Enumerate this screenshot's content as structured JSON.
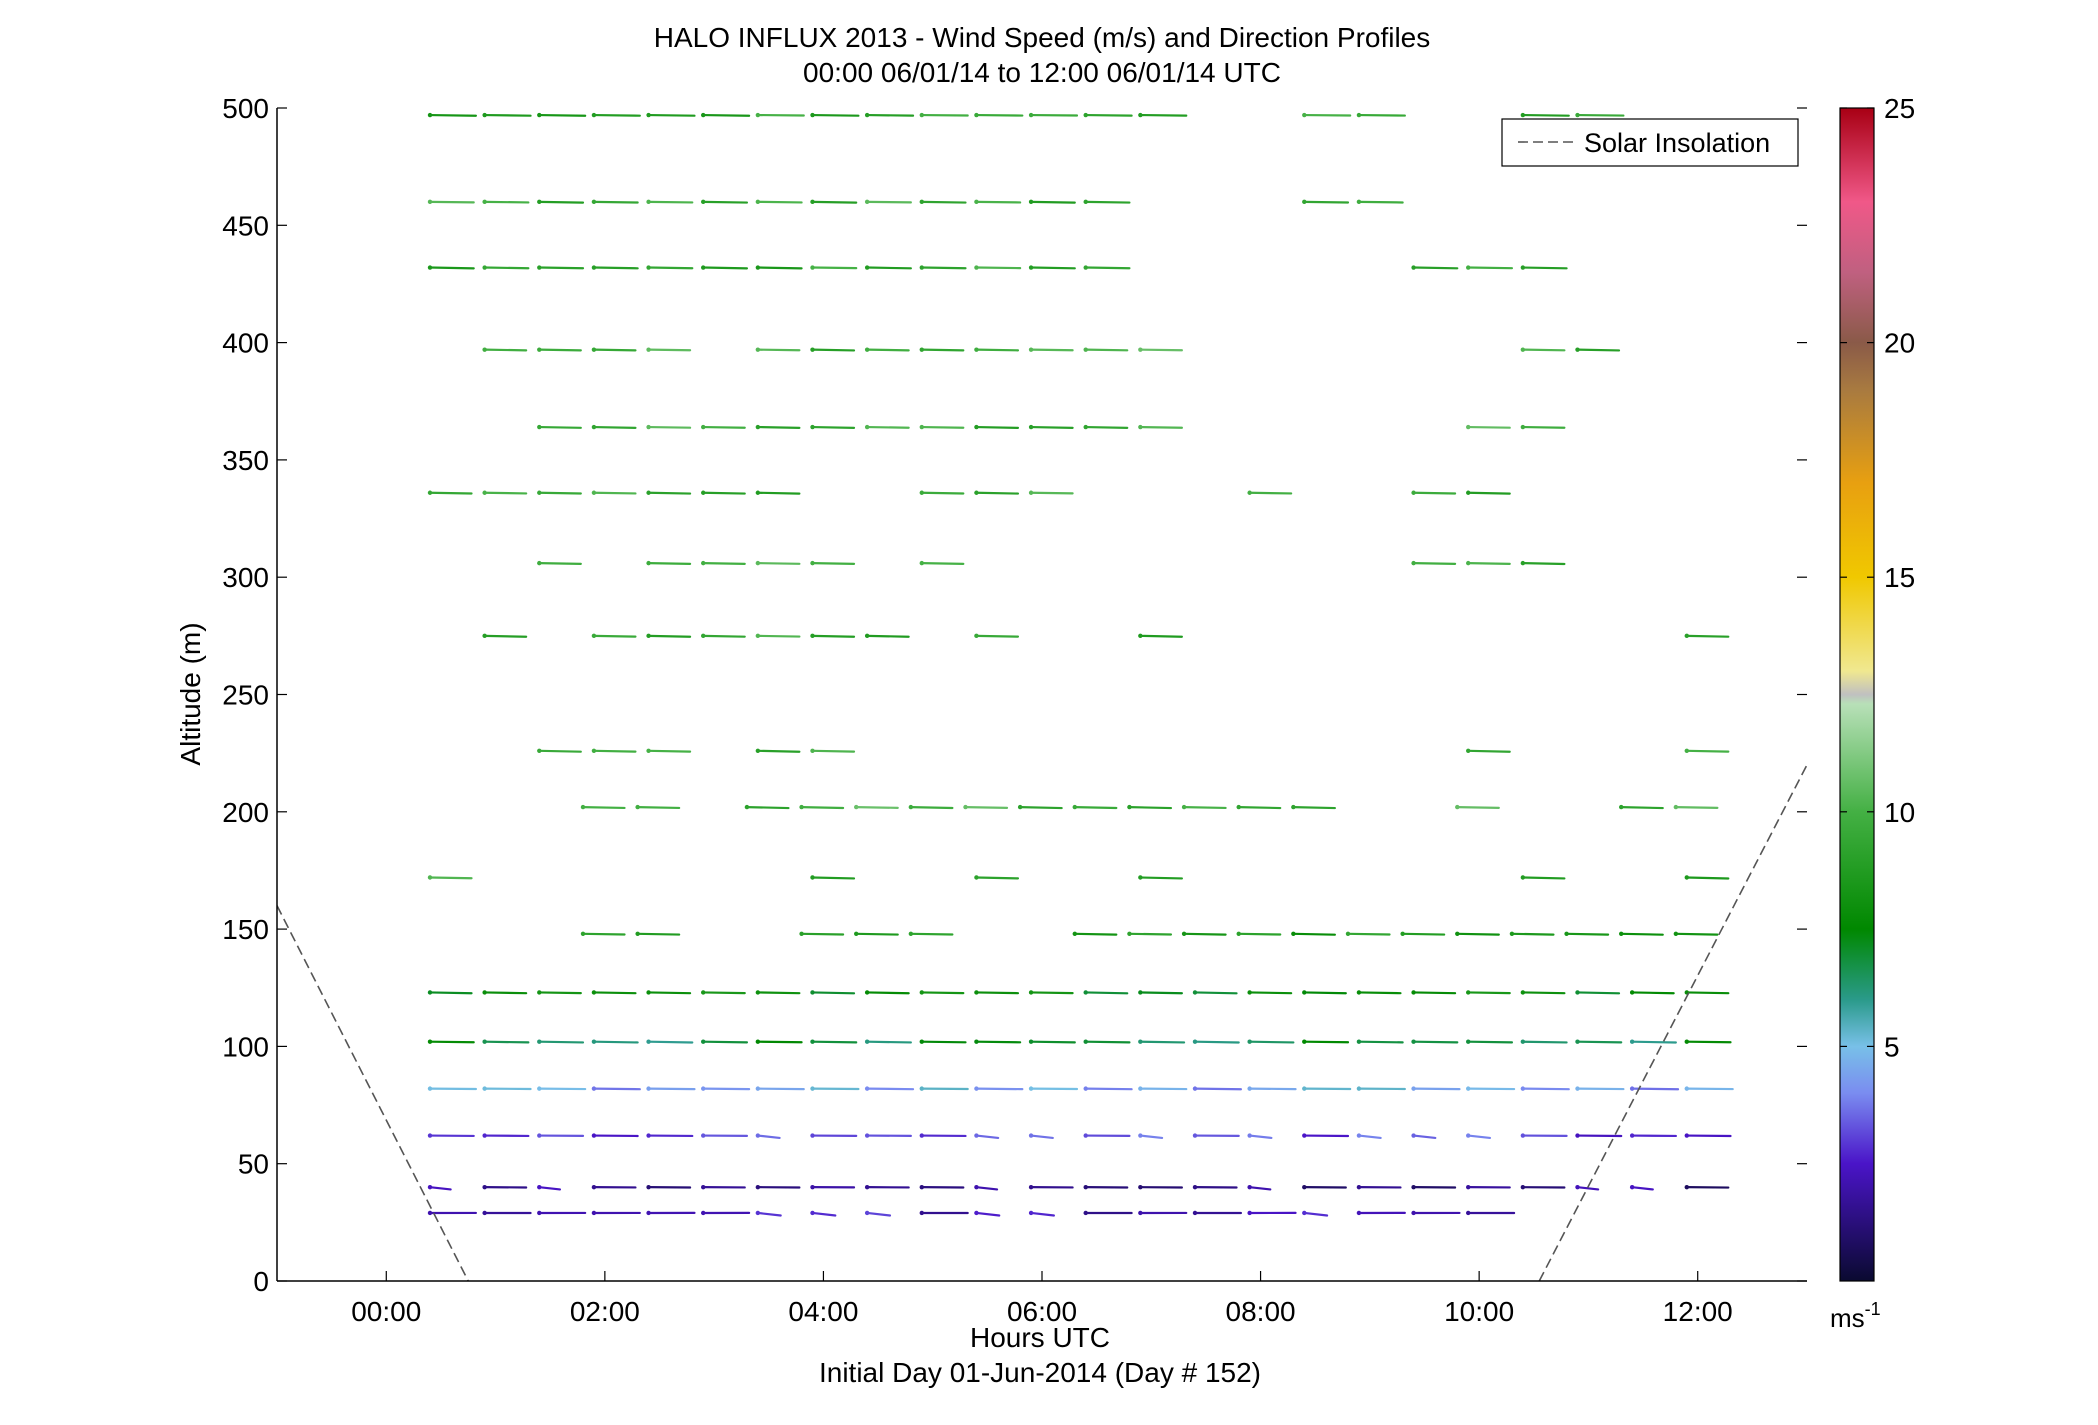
{
  "chart_data": {
    "type": "wind-barb-profile",
    "title": "HALO INFLUX 2013 - Wind Speed (m/s) and Direction Profiles",
    "subtitle": "00:00 06/01/14 to 12:00 06/01/14  UTC",
    "xlabel": "Hours UTC",
    "xlabel2": "Initial Day 01-Jun-2014 (Day # 152)",
    "ylabel": "Altitude (m)",
    "xlim": [
      -1,
      13
    ],
    "ylim": [
      0,
      500
    ],
    "x_ticks": [
      {
        "v": 0,
        "label": "00:00"
      },
      {
        "v": 2,
        "label": "02:00"
      },
      {
        "v": 4,
        "label": "04:00"
      },
      {
        "v": 6,
        "label": "06:00"
      },
      {
        "v": 8,
        "label": "08:00"
      },
      {
        "v": 10,
        "label": "10:00"
      },
      {
        "v": 12,
        "label": "12:00"
      }
    ],
    "y_ticks": [
      {
        "v": 0,
        "label": "0"
      },
      {
        "v": 50,
        "label": "50"
      },
      {
        "v": 100,
        "label": "100"
      },
      {
        "v": 150,
        "label": "150"
      },
      {
        "v": 200,
        "label": "200"
      },
      {
        "v": 250,
        "label": "250"
      },
      {
        "v": 300,
        "label": "300"
      },
      {
        "v": 350,
        "label": "350"
      },
      {
        "v": 400,
        "label": "400"
      },
      {
        "v": 450,
        "label": "450"
      },
      {
        "v": 500,
        "label": "500"
      }
    ],
    "legend": {
      "label": "Solar Insolation",
      "placement": "top-right",
      "line_color": "#555555"
    },
    "colorbar": {
      "range": [
        0,
        25
      ],
      "ticks": [
        {
          "v": 5,
          "label": "5"
        },
        {
          "v": 10,
          "label": "10"
        },
        {
          "v": 15,
          "label": "15"
        },
        {
          "v": 20,
          "label": "20"
        },
        {
          "v": 25,
          "label": "25"
        }
      ],
      "unit": "ms",
      "unit_exp": "-1",
      "stops": [
        {
          "v": 0,
          "color": "#0a0a30"
        },
        {
          "v": 2.5,
          "color": "#4a14c8"
        },
        {
          "v": 4,
          "color": "#7a8cf0"
        },
        {
          "v": 5,
          "color": "#78c0e8"
        },
        {
          "v": 6,
          "color": "#2a9a8a"
        },
        {
          "v": 7.5,
          "color": "#008800"
        },
        {
          "v": 10,
          "color": "#44b044"
        },
        {
          "v": 12.3,
          "color": "#b8e0b8"
        },
        {
          "v": 12.5,
          "color": "#c0c0c0"
        },
        {
          "v": 13,
          "color": "#f0e890"
        },
        {
          "v": 15,
          "color": "#f0c800"
        },
        {
          "v": 17,
          "color": "#e8a010"
        },
        {
          "v": 19,
          "color": "#a87a40"
        },
        {
          "v": 20,
          "color": "#8a5a48"
        },
        {
          "v": 21.5,
          "color": "#c06080"
        },
        {
          "v": 23,
          "color": "#f05888"
        },
        {
          "v": 25,
          "color": "#a80014"
        }
      ]
    },
    "solar_insolation": [
      {
        "x": [
          -1.0,
          0.75
        ],
        "y": [
          160,
          0
        ]
      },
      {
        "x": [
          10.55,
          13.0
        ],
        "y": [
          0,
          220
        ]
      }
    ],
    "profiles": [
      {
        "alt": 497,
        "x0": 0.4,
        "x1": 10.9,
        "speed": 9.2,
        "len": 0.42,
        "slope": -0.18,
        "gaps": [
          [
            7.3,
            8.3
          ],
          [
            9.2,
            10.4
          ]
        ]
      },
      {
        "alt": 460,
        "x0": 0.4,
        "x1": 9.2,
        "speed": 9.6,
        "len": 0.4,
        "slope": -0.22,
        "gaps": [
          [
            6.6,
            8.3
          ]
        ]
      },
      {
        "alt": 432,
        "x0": 0.4,
        "x1": 10.5,
        "speed": 9.3,
        "len": 0.4,
        "slope": -0.24,
        "gaps": [
          [
            6.6,
            9.3
          ]
        ]
      },
      {
        "alt": 397,
        "x0": 0.9,
        "x1": 11.0,
        "speed": 9.8,
        "len": 0.38,
        "slope": -0.25,
        "gaps": [
          [
            2.8,
            3.2
          ],
          [
            6.6,
            6.8
          ],
          [
            7.1,
            10.4
          ]
        ]
      },
      {
        "alt": 364,
        "x0": 1.4,
        "x1": 10.5,
        "speed": 9.7,
        "len": 0.38,
        "slope": -0.26,
        "gaps": [
          [
            7.1,
            9.8
          ]
        ]
      },
      {
        "alt": 336,
        "x0": 0.4,
        "x1": 10.0,
        "speed": 9.5,
        "len": 0.38,
        "slope": -0.27,
        "gaps": [
          [
            3.8,
            4.8
          ],
          [
            6.1,
            7.7
          ],
          [
            8.0,
            9.3
          ]
        ]
      },
      {
        "alt": 306,
        "x0": 1.4,
        "x1": 10.5,
        "speed": 9.6,
        "len": 0.38,
        "slope": -0.28,
        "gaps": [
          [
            1.8,
            2.3
          ],
          [
            4.2,
            4.8
          ],
          [
            5.3,
            9.3
          ]
        ]
      },
      {
        "alt": 275,
        "x0": 0.9,
        "x1": 12.0,
        "speed": 9.5,
        "len": 0.38,
        "slope": -0.28,
        "gaps": [
          [
            1.3,
            1.8
          ],
          [
            4.8,
            5.3
          ],
          [
            5.6,
            6.8
          ],
          [
            7.1,
            11.8
          ]
        ]
      },
      {
        "alt": 226,
        "x0": 1.4,
        "x1": 12.0,
        "speed": 9.9,
        "len": 0.38,
        "slope": -0.3,
        "gaps": [
          [
            2.8,
            3.3
          ],
          [
            4.3,
            9.8
          ],
          [
            10.1,
            11.8
          ]
        ]
      },
      {
        "alt": 202,
        "x0": 1.8,
        "x1": 12.0,
        "speed": 9.9,
        "len": 0.38,
        "slope": -0.3,
        "gaps": [
          [
            2.3,
            3.3
          ],
          [
            4.8,
            5.3
          ],
          [
            8.3,
            9.8
          ],
          [
            10.1,
            11.3
          ]
        ]
      },
      {
        "alt": 172,
        "x0": 0.4,
        "x1": 12.0,
        "speed": 9.4,
        "len": 0.38,
        "slope": -0.31,
        "gaps": [
          [
            0.7,
            3.8
          ],
          [
            4.3,
            5.3
          ],
          [
            5.6,
            6.8
          ],
          [
            7.1,
            10.4
          ],
          [
            10.7,
            11.8
          ]
        ]
      },
      {
        "alt": 148,
        "x0": 1.8,
        "x1": 12.0,
        "speed": 8.6,
        "len": 0.38,
        "slope": -0.28,
        "gaps": [
          [
            2.3,
            3.8
          ],
          [
            4.8,
            6.3
          ]
        ]
      },
      {
        "alt": 123,
        "x0": 0.4,
        "x1": 12.0,
        "speed": 7.7,
        "len": 0.38,
        "slope": -0.27,
        "gaps": []
      },
      {
        "alt": 102,
        "x0": 0.4,
        "x1": 12.0,
        "speed": 6.8,
        "len": 0.4,
        "slope": -0.22,
        "gaps": []
      },
      {
        "alt": 82,
        "x0": 0.4,
        "x1": 12.0,
        "speed": 4.5,
        "len": 0.42,
        "slope": -0.15,
        "gaps": []
      },
      {
        "alt": 62,
        "x0": 0.4,
        "x1": 12.0,
        "speed": 3.0,
        "len": 0.4,
        "slope": -0.12,
        "gaps": []
      },
      {
        "alt": 40,
        "x0": 0.4,
        "x1": 12.0,
        "speed": 1.6,
        "len": 0.38,
        "slope": -0.1,
        "gaps": []
      },
      {
        "alt": 29,
        "x0": 0.4,
        "x1": 10.0,
        "speed": 2.2,
        "len": 0.42,
        "slope": 0.02,
        "gaps": []
      }
    ]
  }
}
